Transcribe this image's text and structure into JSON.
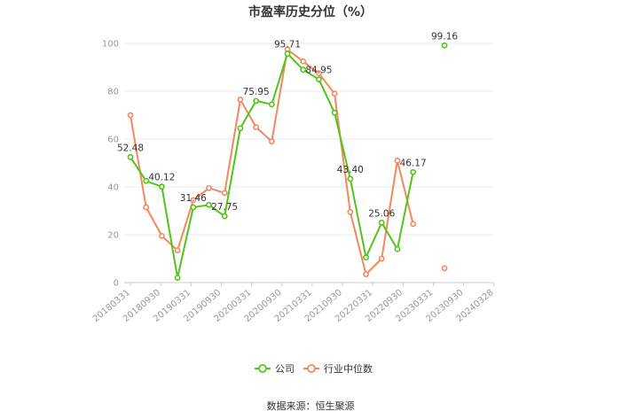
{
  "source": "数据来源：恒生聚源",
  "chart_data": {
    "type": "line",
    "title": "市盈率历史分位（%）",
    "xlabel": "",
    "ylabel": "",
    "ylim": [
      0,
      100
    ],
    "yticks": [
      0,
      20,
      40,
      60,
      80,
      100
    ],
    "grid": true,
    "legend_position": "bottom-center",
    "x_tick_labels": [
      "20180331",
      "20180930",
      "20190331",
      "20190930",
      "20200331",
      "20200930",
      "20210331",
      "20210930",
      "20220331",
      "20220930",
      "20230331",
      "20230930",
      "20240328"
    ],
    "series": [
      {
        "name": "公司",
        "color": "#52c41a",
        "values": [
          52.48,
          42.5,
          40.12,
          2.0,
          31.46,
          32.5,
          27.75,
          64.5,
          75.95,
          74.5,
          95.71,
          89.0,
          84.95,
          71.0,
          43.4,
          10.5,
          25.06,
          14.0,
          46.17,
          null,
          99.16
        ],
        "labels": [
          "52.48",
          null,
          "40.12",
          null,
          "31.46",
          null,
          "27.75",
          null,
          "75.95",
          null,
          "95.71",
          null,
          "84.95",
          null,
          "43.40",
          null,
          "25.06",
          null,
          "46.17",
          null,
          "99.16"
        ]
      },
      {
        "name": "行业中位数",
        "color": "#f4875d",
        "values": [
          70.0,
          31.5,
          19.5,
          13.5,
          34.5,
          39.5,
          37.5,
          76.5,
          65.0,
          59.0,
          97.5,
          92.5,
          87.5,
          79.0,
          29.5,
          3.5,
          10.0,
          51.0,
          24.5,
          null,
          6.0
        ]
      }
    ]
  }
}
